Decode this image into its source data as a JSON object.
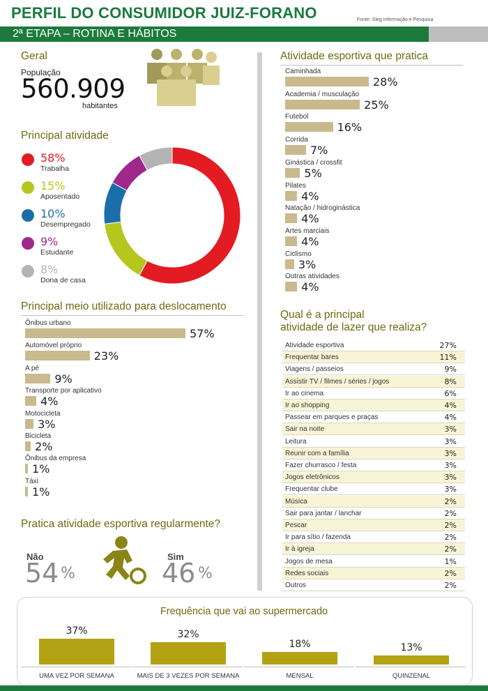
{
  "header": {
    "title": "PERFIL DO CONSUMIDOR JUIZ-FORANO",
    "source": "Fonte: Sieg Informação e Pesquisa",
    "subtitle": "2ª ETAPA – ROTINA E HÁBITOS"
  },
  "geral": {
    "title": "Geral",
    "pop_label": "População",
    "pop_value": "560.909",
    "pop_unit": "habitantes",
    "icon": "people-group-icon"
  },
  "principal_atividade": {
    "title": "Principal atividade",
    "items": [
      {
        "pct": "58%",
        "label": "Trabalha",
        "color": "#e31b23",
        "value": 58
      },
      {
        "pct": "15%",
        "label": "Aposentado",
        "color": "#b5c71e",
        "value": 15
      },
      {
        "pct": "10%",
        "label": "Desempregado",
        "color": "#1b6fa8",
        "value": 10
      },
      {
        "pct": "9%",
        "label": "Estudante",
        "color": "#a0288a",
        "value": 9
      },
      {
        "pct": "8%",
        "label": "Dona de casa",
        "color": "#b4b4b4",
        "value": 8
      }
    ]
  },
  "deslocamento": {
    "title": "Principal meio utilizado para deslocamento",
    "items": [
      {
        "label": "Ônibus urbano",
        "pct": "57%",
        "value": 57
      },
      {
        "label": "Automóvel próprio",
        "pct": "23%",
        "value": 23
      },
      {
        "label": "A pé",
        "pct": "9%",
        "value": 9
      },
      {
        "label": "Transporte por aplicativo",
        "pct": "4%",
        "value": 4
      },
      {
        "label": "Motocicleta",
        "pct": "3%",
        "value": 3
      },
      {
        "label": "Bicicleta",
        "pct": "2%",
        "value": 2
      },
      {
        "label": "Ônibus da empresa",
        "pct": "1%",
        "value": 1
      },
      {
        "label": "Táxi",
        "pct": "1%",
        "value": 1
      }
    ]
  },
  "pratica": {
    "title": "Pratica atividade esportiva regularmente?",
    "nao_label": "Não",
    "nao_value": "54",
    "sim_label": "Sim",
    "sim_value": "46",
    "percent_sign": "%",
    "icon": "soccer-player-icon"
  },
  "atividade_esportiva": {
    "title": "Atividade esportiva que pratica",
    "items": [
      {
        "label": "Caminhada",
        "pct": "28%",
        "value": 28
      },
      {
        "label": "Academia / musculação",
        "pct": "25%",
        "value": 25
      },
      {
        "label": "Futebol",
        "pct": "16%",
        "value": 16
      },
      {
        "label": "Corrida",
        "pct": "7%",
        "value": 7
      },
      {
        "label": "Ginástica / crossfit",
        "pct": "5%",
        "value": 5
      },
      {
        "label": "Pilates",
        "pct": "4%",
        "value": 4
      },
      {
        "label": "Natação / hidroginástica",
        "pct": "4%",
        "value": 4
      },
      {
        "label": "Artes marciais",
        "pct": "4%",
        "value": 4
      },
      {
        "label": "Ciclismo",
        "pct": "3%",
        "value": 3
      },
      {
        "label": "Outras atividades",
        "pct": "4%",
        "value": 4
      }
    ]
  },
  "lazer": {
    "title_line1": "Qual é a principal",
    "title_line2": "atividade de lazer que realiza?",
    "rows": [
      {
        "label": "Atividade esportiva",
        "pct": "27%"
      },
      {
        "label": "Frequentar bares",
        "pct": "11%"
      },
      {
        "label": "Viagens / passeios",
        "pct": "9%"
      },
      {
        "label": "Assistir TV / filmes / séries / jogos",
        "pct": "8%"
      },
      {
        "label": "Ir ao cinema",
        "pct": "6%"
      },
      {
        "label": "Ir ao shopping",
        "pct": "4%"
      },
      {
        "label": "Passear em parques e praças",
        "pct": "4%"
      },
      {
        "label": "Sair na noite",
        "pct": "3%"
      },
      {
        "label": "Leitura",
        "pct": "3%"
      },
      {
        "label": "Reunir com a família",
        "pct": "3%"
      },
      {
        "label": "Fazer churrasco / festa",
        "pct": "3%"
      },
      {
        "label": "Jogos eletrônicos",
        "pct": "3%"
      },
      {
        "label": "Frequentar clube",
        "pct": "3%"
      },
      {
        "label": "Música",
        "pct": "2%"
      },
      {
        "label": "Sair para jantar / lanchar",
        "pct": "2%"
      },
      {
        "label": "Pescar",
        "pct": "2%"
      },
      {
        "label": "Ir para sítio / fazenda",
        "pct": "2%"
      },
      {
        "label": "Ir à igreja",
        "pct": "2%"
      },
      {
        "label": "Jogos de mesa",
        "pct": "1%"
      },
      {
        "label": "Redes sociais",
        "pct": "2%"
      },
      {
        "label": "Outros",
        "pct": "2%"
      }
    ]
  },
  "supermercado": {
    "title": "Frequência que vai ao supermercado",
    "items": [
      {
        "label": "UMA VEZ POR SEMANA",
        "pct": "37%",
        "value": 37
      },
      {
        "label": "MAIS DE 3 VEZES POR SEMANA",
        "pct": "32%",
        "value": 32
      },
      {
        "label": "MENSAL",
        "pct": "18%",
        "value": 18
      },
      {
        "label": "QUINZENAL",
        "pct": "13%",
        "value": 13
      }
    ]
  },
  "colors": {
    "brand_green": "#1b7a3c",
    "bar_tan": "#c9b98e",
    "bar_olive": "#b3a214",
    "title_olive": "#6b6b10"
  },
  "chart_data": [
    {
      "type": "pie",
      "title": "Principal atividade",
      "categories": [
        "Trabalha",
        "Aposentado",
        "Desempregado",
        "Estudante",
        "Dona de casa"
      ],
      "values": [
        58,
        15,
        10,
        9,
        8
      ]
    },
    {
      "type": "bar",
      "title": "Principal meio utilizado para deslocamento",
      "categories": [
        "Ônibus urbano",
        "Automóvel próprio",
        "A pé",
        "Transporte por aplicativo",
        "Motocicleta",
        "Bicicleta",
        "Ônibus da empresa",
        "Táxi"
      ],
      "values": [
        57,
        23,
        9,
        4,
        3,
        2,
        1,
        1
      ]
    },
    {
      "type": "bar",
      "title": "Atividade esportiva que pratica",
      "categories": [
        "Caminhada",
        "Academia / musculação",
        "Futebol",
        "Corrida",
        "Ginástica / crossfit",
        "Pilates",
        "Natação / hidroginástica",
        "Artes marciais",
        "Ciclismo",
        "Outras atividades"
      ],
      "values": [
        28,
        25,
        16,
        7,
        5,
        4,
        4,
        4,
        3,
        4
      ]
    },
    {
      "type": "table",
      "title": "Qual é a principal atividade de lazer que realiza?",
      "categories": [
        "Atividade esportiva",
        "Frequentar bares",
        "Viagens / passeios",
        "Assistir TV / filmes / séries / jogos",
        "Ir ao cinema",
        "Ir ao shopping",
        "Passear em parques e praças",
        "Sair na noite",
        "Leitura",
        "Reunir com a família",
        "Fazer churrasco / festa",
        "Jogos eletrônicos",
        "Frequentar clube",
        "Música",
        "Sair para jantar / lanchar",
        "Pescar",
        "Ir para sítio / fazenda",
        "Ir à igreja",
        "Jogos de mesa",
        "Redes sociais",
        "Outros"
      ],
      "values": [
        27,
        11,
        9,
        8,
        6,
        4,
        4,
        3,
        3,
        3,
        3,
        3,
        3,
        2,
        2,
        2,
        2,
        2,
        1,
        2,
        2
      ]
    },
    {
      "type": "bar",
      "title": "Frequência que vai ao supermercado",
      "categories": [
        "UMA VEZ POR SEMANA",
        "MAIS DE 3 VEZES POR SEMANA",
        "MENSAL",
        "QUINZENAL"
      ],
      "values": [
        37,
        32,
        18,
        13
      ]
    },
    {
      "type": "pie",
      "title": "Pratica atividade esportiva regularmente?",
      "categories": [
        "Não",
        "Sim"
      ],
      "values": [
        54,
        46
      ]
    }
  ]
}
